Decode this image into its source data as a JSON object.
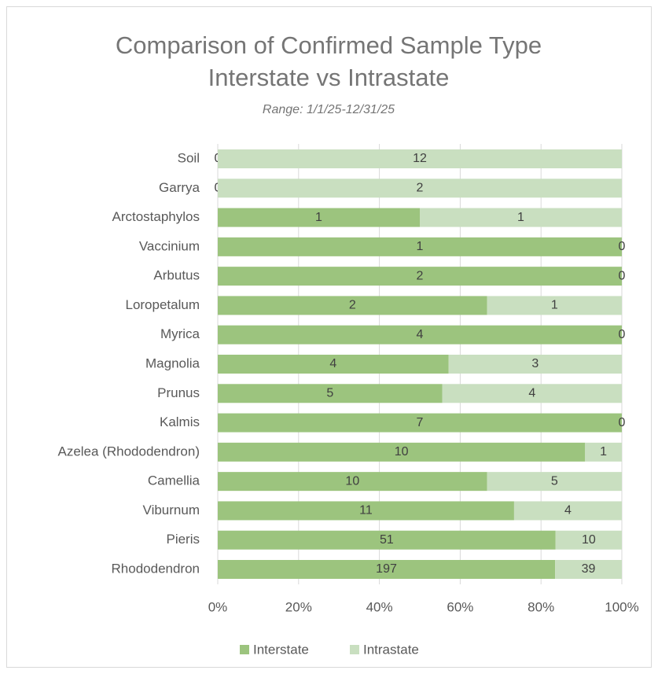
{
  "chart_data": {
    "type": "bar",
    "orientation": "horizontal",
    "stacking": "percent",
    "title": [
      "Comparison of Confirmed Sample Type",
      "Interstate vs Intrastate"
    ],
    "subtitle": "Range: 1/1/25-12/31/25",
    "categories": [
      "Soil",
      "Garrya",
      "Arctostaphylos",
      "Vaccinium",
      "Arbutus",
      "Loropetalum",
      "Myrica",
      "Magnolia",
      "Prunus",
      "Kalmis",
      "Azelea (Rhododendron)",
      "Camellia",
      "Viburnum",
      "Pieris",
      "Rhododendron"
    ],
    "series": [
      {
        "name": "Interstate",
        "color": "#9cc47e",
        "values": [
          0,
          0,
          1,
          1,
          2,
          2,
          4,
          4,
          5,
          7,
          10,
          10,
          11,
          51,
          197
        ]
      },
      {
        "name": "Intrastate",
        "color": "#c9dfc0",
        "values": [
          12,
          2,
          1,
          0,
          0,
          1,
          0,
          3,
          4,
          0,
          1,
          5,
          4,
          10,
          39
        ]
      }
    ],
    "xlim": [
      0,
      100
    ],
    "xticks": [
      {
        "value": 0,
        "label": "0%"
      },
      {
        "value": 20,
        "label": "20%"
      },
      {
        "value": 40,
        "label": "40%"
      },
      {
        "value": 60,
        "label": "60%"
      },
      {
        "value": 80,
        "label": "80%"
      },
      {
        "value": 100,
        "label": "100%"
      }
    ],
    "grid": true,
    "legend": "bottom"
  }
}
